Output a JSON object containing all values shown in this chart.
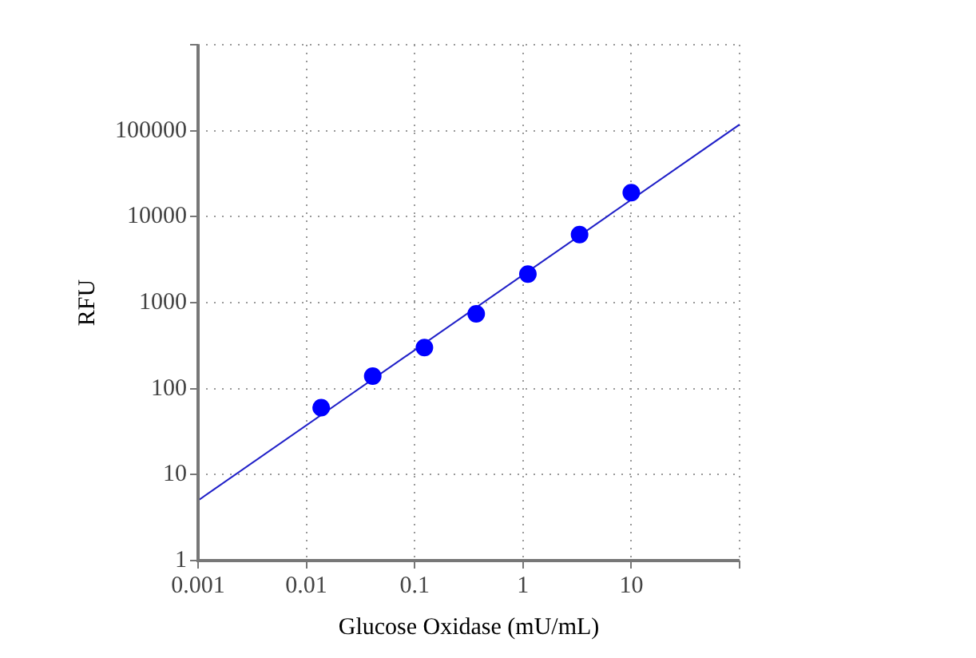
{
  "chart_data": {
    "type": "scatter",
    "xlabel": "Glucose Oxidase (mU/mL)",
    "ylabel": "RFU",
    "log": "xy",
    "grid": true,
    "legend": false,
    "marker": "circle",
    "xlim": [
      0.001,
      100
    ],
    "xticks": [
      0.001,
      0.01,
      0.1,
      1,
      10,
      {
        "value": 100,
        "label": null
      }
    ],
    "ylim": [
      1,
      1000000
    ],
    "yticks": [
      1,
      10,
      100,
      1000,
      10000,
      100000,
      {
        "value": 1000000,
        "label": null
      }
    ],
    "series": [
      {
        "color": "#0000ff",
        "x": [
          0.0137,
          0.041,
          0.123,
          0.37,
          1.11,
          3.33,
          10
        ],
        "values": [
          60,
          140,
          300,
          740,
          2150,
          6200,
          19000
        ]
      },
      {
        "type": "line",
        "color": "#2020c8",
        "line_style": "solid",
        "marker": "none",
        "x": [
          0.001,
          100
        ],
        "values": [
          5,
          118000
        ]
      }
    ]
  }
}
